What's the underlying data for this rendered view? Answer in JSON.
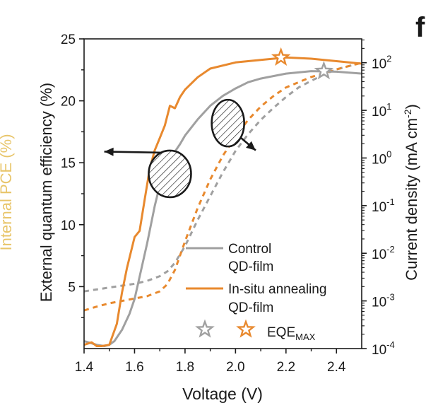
{
  "panel_label": "f",
  "chart_data": {
    "type": "line",
    "xlabel": "Voltage (V)",
    "ylabel_left": "External quantum efficiency (%)",
    "ylabel_right_prefix": "Current density (mA cm",
    "ylabel_right_sup": "-2",
    "ylabel_right_suffix": ")",
    "ylabel_cut": "Internal PCE (%)",
    "xlim": [
      1.4,
      2.5
    ],
    "ylim_left": [
      0,
      25
    ],
    "ylim_right_log10": [
      -4,
      2.5
    ],
    "x_ticks": [
      "1.4",
      "1.6",
      "1.8",
      "2.0",
      "2.2",
      "2.4"
    ],
    "y_left_ticks": [
      "5",
      "10",
      "15",
      "20",
      "25"
    ],
    "y_right_ticks": [
      {
        "base": "10",
        "exp": "2"
      },
      {
        "base": "10",
        "exp": "1"
      },
      {
        "base": "10",
        "exp": "0"
      },
      {
        "base": "10",
        "exp": "-1"
      },
      {
        "base": "10",
        "exp": "-2"
      },
      {
        "base": "10",
        "exp": "-3"
      },
      {
        "base": "10",
        "exp": "-4"
      }
    ],
    "colors": {
      "control": "#a0a0a0",
      "insitu": "#e8892e",
      "axis": "#1a1a1a",
      "cut_label": "#e8c56a"
    },
    "series": [
      {
        "name": "Control QD-film EQE",
        "axis": "left",
        "style": "solid",
        "color": "#a0a0a0",
        "x": [
          1.4,
          1.45,
          1.48,
          1.5,
          1.52,
          1.55,
          1.58,
          1.6,
          1.62,
          1.65,
          1.68,
          1.7,
          1.72,
          1.75,
          1.78,
          1.8,
          1.85,
          1.9,
          1.95,
          2.0,
          2.05,
          2.1,
          2.15,
          2.2,
          2.3,
          2.4,
          2.5
        ],
        "y": [
          0.6,
          0.3,
          0.2,
          0.3,
          0.6,
          1.5,
          2.8,
          4.0,
          5.8,
          8.5,
          11.5,
          13.2,
          14.5,
          15.6,
          16.5,
          17.2,
          18.5,
          19.6,
          20.4,
          21.0,
          21.5,
          21.8,
          22.0,
          22.2,
          22.4,
          22.35,
          22.2
        ]
      },
      {
        "name": "In-situ annealing QD-film EQE",
        "axis": "left",
        "style": "solid",
        "color": "#e8892e",
        "x": [
          1.4,
          1.43,
          1.45,
          1.47,
          1.5,
          1.53,
          1.55,
          1.57,
          1.6,
          1.62,
          1.64,
          1.66,
          1.68,
          1.7,
          1.72,
          1.74,
          1.76,
          1.78,
          1.8,
          1.85,
          1.9,
          2.0,
          2.1,
          2.2,
          2.3,
          2.4,
          2.5
        ],
        "y": [
          0.3,
          0.5,
          0.2,
          0.2,
          0.3,
          2.0,
          4.5,
          6.5,
          9.0,
          9.5,
          12.0,
          14.5,
          16.0,
          17.0,
          18.0,
          19.6,
          19.4,
          20.3,
          20.9,
          21.9,
          22.6,
          23.1,
          23.3,
          23.5,
          23.4,
          23.2,
          23.0
        ]
      },
      {
        "name": "Control QD-film J",
        "axis": "right",
        "style": "dashed",
        "color": "#a0a0a0",
        "x": [
          1.4,
          1.5,
          1.6,
          1.65,
          1.7,
          1.73,
          1.76,
          1.8,
          1.85,
          1.9,
          1.95,
          2.0,
          2.05,
          2.1,
          2.15,
          2.2,
          2.25,
          2.3,
          2.35,
          2.4,
          2.5
        ],
        "log10_y": [
          -2.8,
          -2.72,
          -2.64,
          -2.58,
          -2.48,
          -2.38,
          -2.2,
          -1.85,
          -1.3,
          -0.8,
          -0.3,
          0.15,
          0.5,
          0.8,
          1.05,
          1.28,
          1.48,
          1.62,
          1.75,
          1.86,
          2.0
        ]
      },
      {
        "name": "In-situ annealing QD-film J",
        "axis": "right",
        "style": "dashed",
        "color": "#e8892e",
        "x": [
          1.4,
          1.45,
          1.5,
          1.55,
          1.6,
          1.65,
          1.7,
          1.73,
          1.76,
          1.8,
          1.85,
          1.9,
          1.95,
          2.0,
          2.05,
          2.1,
          2.15,
          2.2,
          2.3,
          2.4,
          2.5
        ],
        "log10_y": [
          -3.2,
          -3.12,
          -3.05,
          -3.0,
          -2.95,
          -2.9,
          -2.8,
          -2.65,
          -2.35,
          -1.75,
          -1.05,
          -0.45,
          0.05,
          0.45,
          0.8,
          1.08,
          1.3,
          1.48,
          1.7,
          1.86,
          2.0
        ]
      }
    ],
    "markers": [
      {
        "name": "in-situ-eqe-max",
        "x": 2.18,
        "y": 23.5,
        "color": "#e8892e"
      },
      {
        "name": "control-eqe-max",
        "x": 2.35,
        "y": 22.4,
        "color": "#a0a0a0"
      }
    ],
    "annotations": [
      {
        "name": "left-axis-ellipse",
        "cx": 1.74,
        "cy": 14.1,
        "arrow_to_x": 1.48,
        "arrow_to_y": 15.9,
        "side": "left"
      },
      {
        "name": "right-axis-ellipse",
        "cx": 1.97,
        "cy": 18.2,
        "arrow_to_x": 2.08,
        "arrow_to_y": 16.0,
        "side": "right"
      }
    ],
    "legend": {
      "placement": "lower-right",
      "entries": [
        {
          "label1": "Control",
          "label2": "QD-film",
          "color": "#a0a0a0"
        },
        {
          "label1": "In-situ annealing",
          "label2": "QD-film",
          "color": "#e8892e"
        }
      ],
      "marker_label": "EQE",
      "marker_label_sub": "MAX"
    }
  }
}
